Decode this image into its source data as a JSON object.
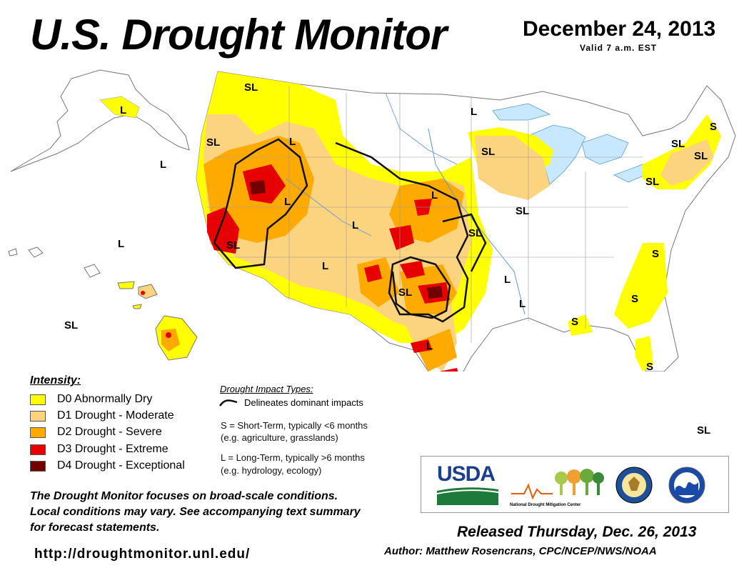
{
  "header": {
    "title": "U.S. Drought Monitor",
    "date": "December 24, 2013",
    "valid": "Valid 7 a.m. EST"
  },
  "colors": {
    "D0": "#ffff00",
    "D1": "#fcd37f",
    "D2": "#ffaa00",
    "D3": "#e60000",
    "D4": "#730000",
    "water": "#c8e8ff",
    "land": "#ffffff"
  },
  "legend": {
    "title": "Intensity:",
    "items": [
      {
        "code": "D0",
        "label": "D0 Abnormally Dry"
      },
      {
        "code": "D1",
        "label": "D1 Drought - Moderate"
      },
      {
        "code": "D2",
        "label": "D2 Drought - Severe"
      },
      {
        "code": "D3",
        "label": "D3 Drought - Extreme"
      },
      {
        "code": "D4",
        "label": "D4 Drought - Exceptional"
      }
    ]
  },
  "impacts": {
    "title": "Drought Impact Types:",
    "delineates": "Delineates dominant impacts",
    "short_term_1": "S = Short-Term, typically <6 months",
    "short_term_2": "(e.g. agriculture, grasslands)",
    "long_term_1": "L = Long-Term, typically >6 months",
    "long_term_2": "(e.g. hydrology, ecology)"
  },
  "map_labels": {
    "sl": "SL",
    "l": "L",
    "s": "S"
  },
  "note": {
    "line1": "The Drought Monitor focuses on broad-scale conditions.",
    "line2": "Local conditions may vary. See accompanying text summary",
    "line3": "for forecast statements."
  },
  "url": "http://droughtmonitor.unl.edu/",
  "logos": {
    "usda": "USDA",
    "ndmc": "National Drought Mitigation Center"
  },
  "footer": {
    "released": "Released Thursday, Dec. 26, 2013",
    "author": "Author: Matthew Rosencrans, CPC/NCEP/NWS/NOAA"
  }
}
